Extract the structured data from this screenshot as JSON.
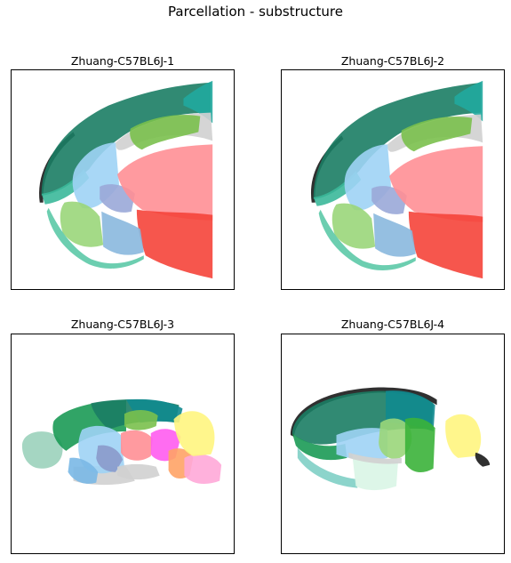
{
  "figure": {
    "title": "Parcellation - substructure"
  },
  "chart_data": [
    {
      "type": "scatter",
      "title": "Zhuang-C57BL6J-1",
      "xlabel": "",
      "ylabel": "",
      "grid": false,
      "legend": "none",
      "series": [
        {
          "color": "#1b7d64"
        },
        {
          "color": "#21a89e"
        },
        {
          "color": "#3bb89a"
        },
        {
          "color": "#5cc9a7"
        },
        {
          "color": "#9ad67a"
        },
        {
          "color": "#7ac04d"
        },
        {
          "color": "#d0d0d0"
        },
        {
          "color": "#9fd3f5"
        },
        {
          "color": "#8ab8de"
        },
        {
          "color": "#9aa8d8"
        },
        {
          "color": "#ff8f95"
        },
        {
          "color": "#f5443a"
        },
        {
          "color": "#1a1a1a"
        }
      ]
    },
    {
      "type": "scatter",
      "title": "Zhuang-C57BL6J-2",
      "xlabel": "",
      "ylabel": "",
      "grid": false,
      "legend": "none",
      "series": [
        {
          "color": "#1b7d64"
        },
        {
          "color": "#21a89e"
        },
        {
          "color": "#3bb89a"
        },
        {
          "color": "#5cc9a7"
        },
        {
          "color": "#9ad67a"
        },
        {
          "color": "#7ac04d"
        },
        {
          "color": "#d0d0d0"
        },
        {
          "color": "#9fd3f5"
        },
        {
          "color": "#8ab8de"
        },
        {
          "color": "#9aa8d8"
        },
        {
          "color": "#ff8f95"
        },
        {
          "color": "#f5443a"
        },
        {
          "color": "#1a1a1a"
        }
      ]
    },
    {
      "type": "scatter",
      "title": "Zhuang-C57BL6J-3",
      "xlabel": "",
      "ylabel": "",
      "grid": false,
      "legend": "none",
      "series": [
        {
          "color": "#9bd1bb"
        },
        {
          "color": "#1b9a55"
        },
        {
          "color": "#1b7d64"
        },
        {
          "color": "#11898f"
        },
        {
          "color": "#9fd3f5"
        },
        {
          "color": "#7ab8e6"
        },
        {
          "color": "#8a9acb"
        },
        {
          "color": "#7ac04d"
        },
        {
          "color": "#ff8f95"
        },
        {
          "color": "#ff5cf0"
        },
        {
          "color": "#ffa366"
        },
        {
          "color": "#ffa8d8"
        },
        {
          "color": "#fff580"
        },
        {
          "color": "#d0d0d0"
        }
      ]
    },
    {
      "type": "scatter",
      "title": "Zhuang-C57BL6J-4",
      "xlabel": "",
      "ylabel": "",
      "grid": false,
      "legend": "none",
      "series": [
        {
          "color": "#1b7d64"
        },
        {
          "color": "#11898f"
        },
        {
          "color": "#1b9a55"
        },
        {
          "color": "#9fd3f5"
        },
        {
          "color": "#9ad67a"
        },
        {
          "color": "#3bb33a"
        },
        {
          "color": "#7fcfc5"
        },
        {
          "color": "#d9f5e6"
        },
        {
          "color": "#fff580"
        },
        {
          "color": "#d0d0d0"
        },
        {
          "color": "#1a1a1a"
        }
      ]
    }
  ]
}
